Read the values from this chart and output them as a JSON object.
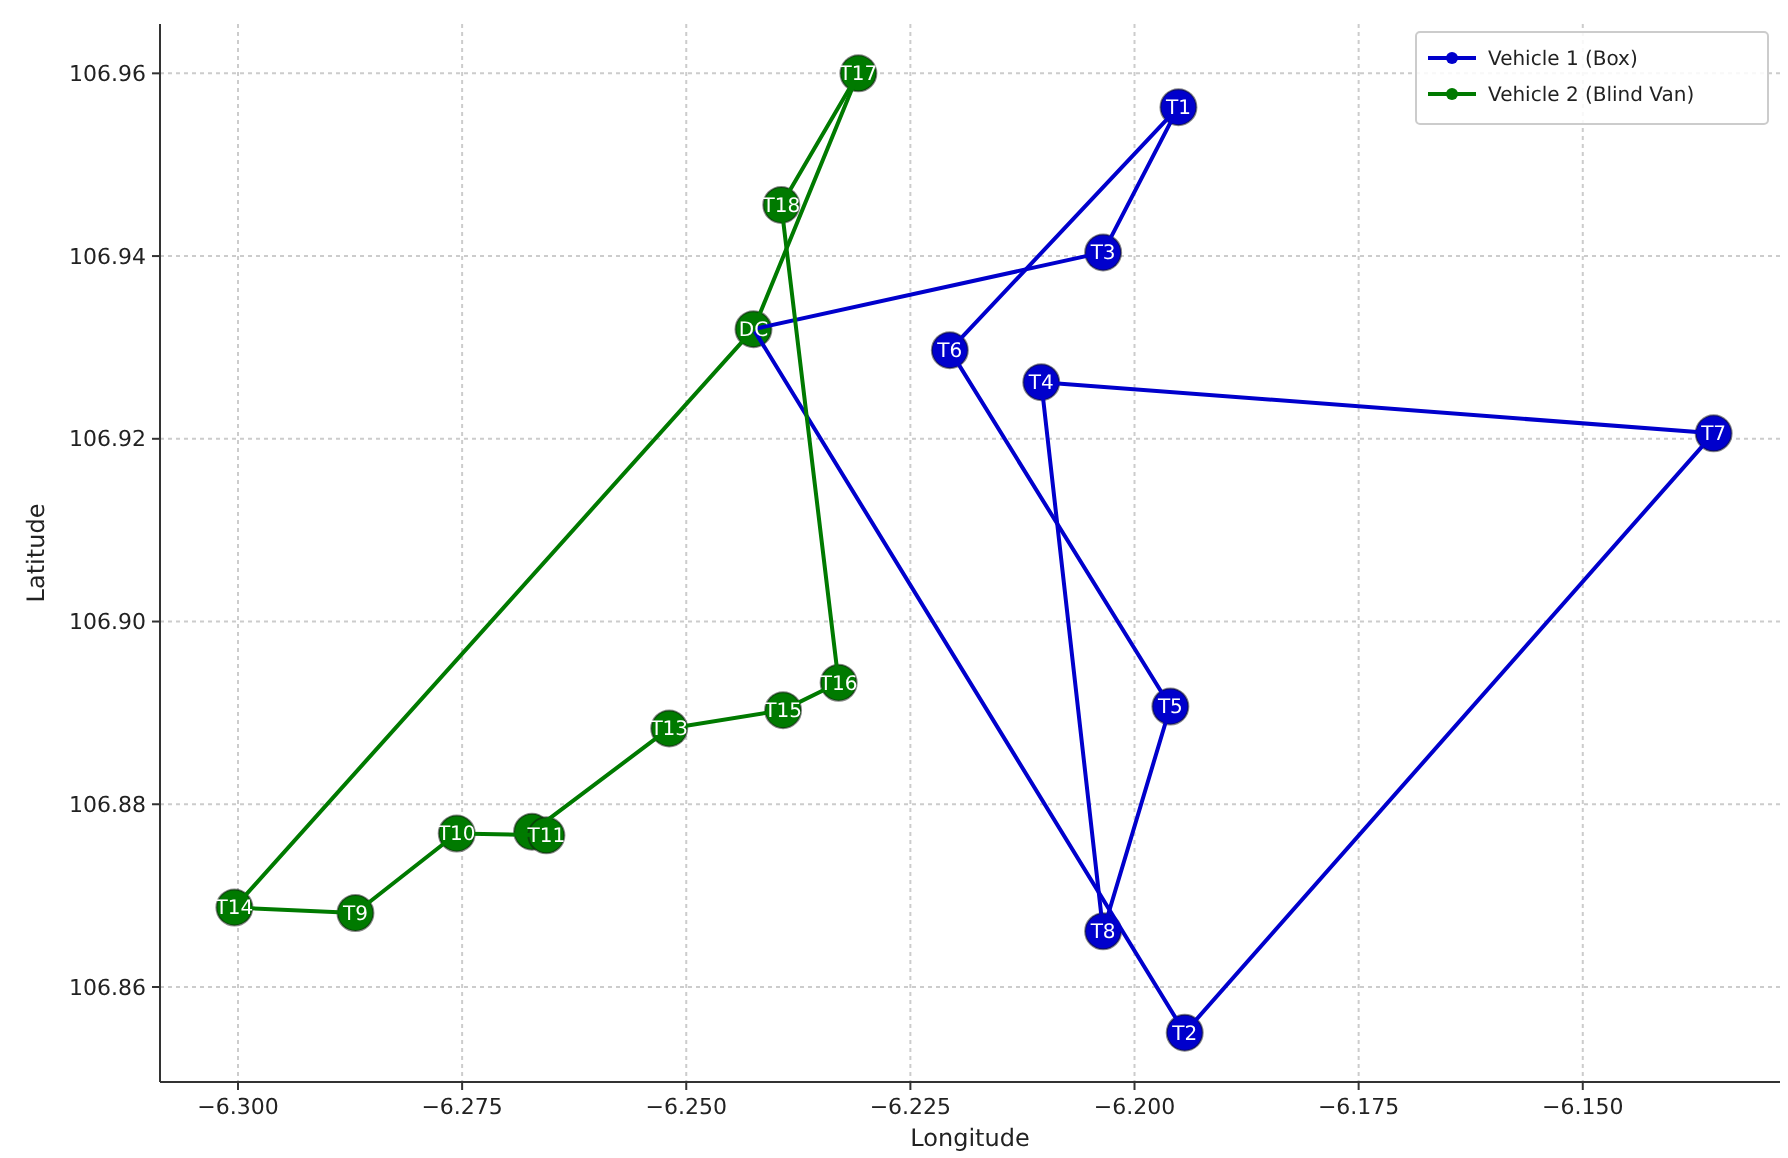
{
  "chart_data": {
    "type": "scatter",
    "xlabel": "Longitude",
    "ylabel": "Latitude",
    "xlim": [
      -6.3087,
      -6.128
    ],
    "ylim": [
      106.8496,
      106.9654
    ],
    "xticks": [
      {
        "value": -6.3,
        "label": "−6.300"
      },
      {
        "value": -6.275,
        "label": "−6.275"
      },
      {
        "value": -6.25,
        "label": "−6.250"
      },
      {
        "value": -6.225,
        "label": "−6.225"
      },
      {
        "value": -6.2,
        "label": "−6.200"
      },
      {
        "value": -6.175,
        "label": "−6.175"
      },
      {
        "value": -6.15,
        "label": "−6.150"
      }
    ],
    "yticks": [
      106.86,
      106.88,
      {
        "value": 106.9,
        "label": "106.90"
      },
      106.92,
      106.94,
      106.96
    ],
    "grid": true,
    "legend": "top right",
    "marker": "circle",
    "line_style": "solid",
    "series": [
      {
        "type": "line",
        "marker": "none",
        "color": "#0000cc",
        "x": [
          -6.2425,
          -6.2035
        ],
        "values": [
          106.932,
          106.9404
        ]
      },
      {
        "type": "line",
        "marker": "none",
        "color": "#0000cc",
        "x": [
          -6.2035,
          -6.1951
        ],
        "values": [
          106.9404,
          106.9563
        ]
      },
      {
        "type": "line",
        "marker": "none",
        "color": "#0000cc",
        "x": [
          -6.2206,
          -6.1951
        ],
        "values": [
          106.9297,
          106.9563
        ]
      },
      {
        "type": "line",
        "marker": "none",
        "color": "#0000cc",
        "x": [
          -6.2206,
          -6.196
        ],
        "values": [
          106.9297,
          106.8907
        ]
      },
      {
        "type": "line",
        "marker": "none",
        "color": "#0000cc",
        "x": [
          -6.2035,
          -6.196
        ],
        "values": [
          106.8661,
          106.8907
        ]
      },
      {
        "type": "line",
        "marker": "none",
        "color": "#0000cc",
        "x": [
          -6.2104,
          -6.2035
        ],
        "values": [
          106.9262,
          106.8661
        ]
      },
      {
        "type": "line",
        "marker": "none",
        "color": "#0000cc",
        "x": [
          -6.2104,
          -6.1354
        ],
        "values": [
          106.9262,
          106.9206
        ]
      },
      {
        "type": "line",
        "marker": "none",
        "color": "#0000cc",
        "x": [
          -6.1944,
          -6.1354
        ],
        "values": [
          106.855,
          106.9206
        ]
      },
      {
        "type": "line",
        "marker": "none",
        "color": "#0000cc",
        "x": [
          -6.2425,
          -6.1944
        ],
        "values": [
          106.932,
          106.855
        ]
      },
      {
        "type": "line",
        "marker": "none",
        "color": "#007a00",
        "x": [
          -6.2425,
          -6.2308
        ],
        "values": [
          106.932,
          106.96
        ]
      },
      {
        "type": "line",
        "marker": "none",
        "color": "#007a00",
        "x": [
          -6.2394,
          -6.2308
        ],
        "values": [
          106.9456,
          106.96
        ]
      },
      {
        "type": "line",
        "marker": "none",
        "color": "#007a00",
        "x": [
          -6.2394,
          -6.233
        ],
        "values": [
          106.9456,
          106.8933
        ]
      },
      {
        "type": "line",
        "marker": "none",
        "color": "#007a00",
        "x": [
          -6.2392,
          -6.233
        ],
        "values": [
          106.8903,
          106.8933
        ]
      },
      {
        "type": "line",
        "marker": "none",
        "color": "#007a00",
        "x": [
          -6.2519,
          -6.2392
        ],
        "values": [
          106.8883,
          106.8903
        ]
      },
      {
        "type": "line",
        "marker": "none",
        "color": "#007a00",
        "x": [
          -6.2672,
          -6.2519
        ],
        "values": [
          106.877,
          106.8883
        ]
      },
      {
        "type": "line",
        "marker": "none",
        "color": "#007a00",
        "x": [
          -6.2756,
          -6.2656
        ],
        "values": [
          106.8768,
          106.8766
        ]
      },
      {
        "type": "line",
        "marker": "none",
        "color": "#007a00",
        "x": [
          -6.2869,
          -6.2756
        ],
        "values": [
          106.8681,
          106.8768
        ]
      },
      {
        "type": "line",
        "marker": "none",
        "color": "#007a00",
        "x": [
          -6.3004,
          -6.2869
        ],
        "values": [
          106.8687,
          106.8681
        ]
      },
      {
        "type": "line",
        "marker": "none",
        "color": "#007a00",
        "x": [
          -6.3004,
          -6.2425
        ],
        "values": [
          106.8687,
          106.932
        ]
      },
      {
        "name": "Vehicle 1 (Box)",
        "color": "#0000cc",
        "x": [
          -6.1951,
          -6.1944,
          -6.2035,
          -6.2104,
          -6.196,
          -6.2206,
          -6.1354,
          -6.2035
        ],
        "values": [
          106.9563,
          106.855,
          106.9404,
          106.9262,
          106.8907,
          106.9297,
          106.9206,
          106.8661
        ]
      },
      {
        "name": "Vehicle 2 (Blind Van)",
        "color": "#007a00",
        "x": [
          -6.2425,
          -6.2308,
          -6.2394,
          -6.233,
          -6.2392,
          -6.2519,
          -6.2672,
          -6.2656,
          -6.2756,
          -6.2869,
          -6.3004
        ],
        "values": [
          106.932,
          106.96,
          106.9456,
          106.8933,
          106.8903,
          106.8883,
          106.877,
          106.8766,
          106.8768,
          106.8681,
          106.8687
        ]
      }
    ],
    "annotations": [
      {
        "text": "DC",
        "x": -6.2425,
        "y": 106.932
      },
      {
        "text": "T1",
        "x": -6.1951,
        "y": 106.9563
      },
      {
        "text": "T2",
        "x": -6.1944,
        "y": 106.855
      },
      {
        "text": "T3",
        "x": -6.2035,
        "y": 106.9404
      },
      {
        "text": "T4",
        "x": -6.2104,
        "y": 106.9262
      },
      {
        "text": "T5",
        "x": -6.196,
        "y": 106.8907
      },
      {
        "text": "T6",
        "x": -6.2206,
        "y": 106.9297
      },
      {
        "text": "T7",
        "x": -6.1354,
        "y": 106.9206
      },
      {
        "text": "T8",
        "x": -6.2035,
        "y": 106.8661
      },
      {
        "text": "T9",
        "x": -6.2869,
        "y": 106.8681
      },
      {
        "text": "T10",
        "x": -6.2756,
        "y": 106.8768
      },
      {
        "text": "T11",
        "x": -6.2656,
        "y": 106.8766
      },
      {
        "text": "T13",
        "x": -6.2519,
        "y": 106.8883
      },
      {
        "text": "T14",
        "x": -6.3004,
        "y": 106.8687
      },
      {
        "text": "T15",
        "x": -6.2392,
        "y": 106.8903
      },
      {
        "text": "T16",
        "x": -6.233,
        "y": 106.8933
      },
      {
        "text": "T17",
        "x": -6.2308,
        "y": 106.96
      },
      {
        "text": "T18",
        "x": -6.2394,
        "y": 106.9456
      }
    ]
  }
}
